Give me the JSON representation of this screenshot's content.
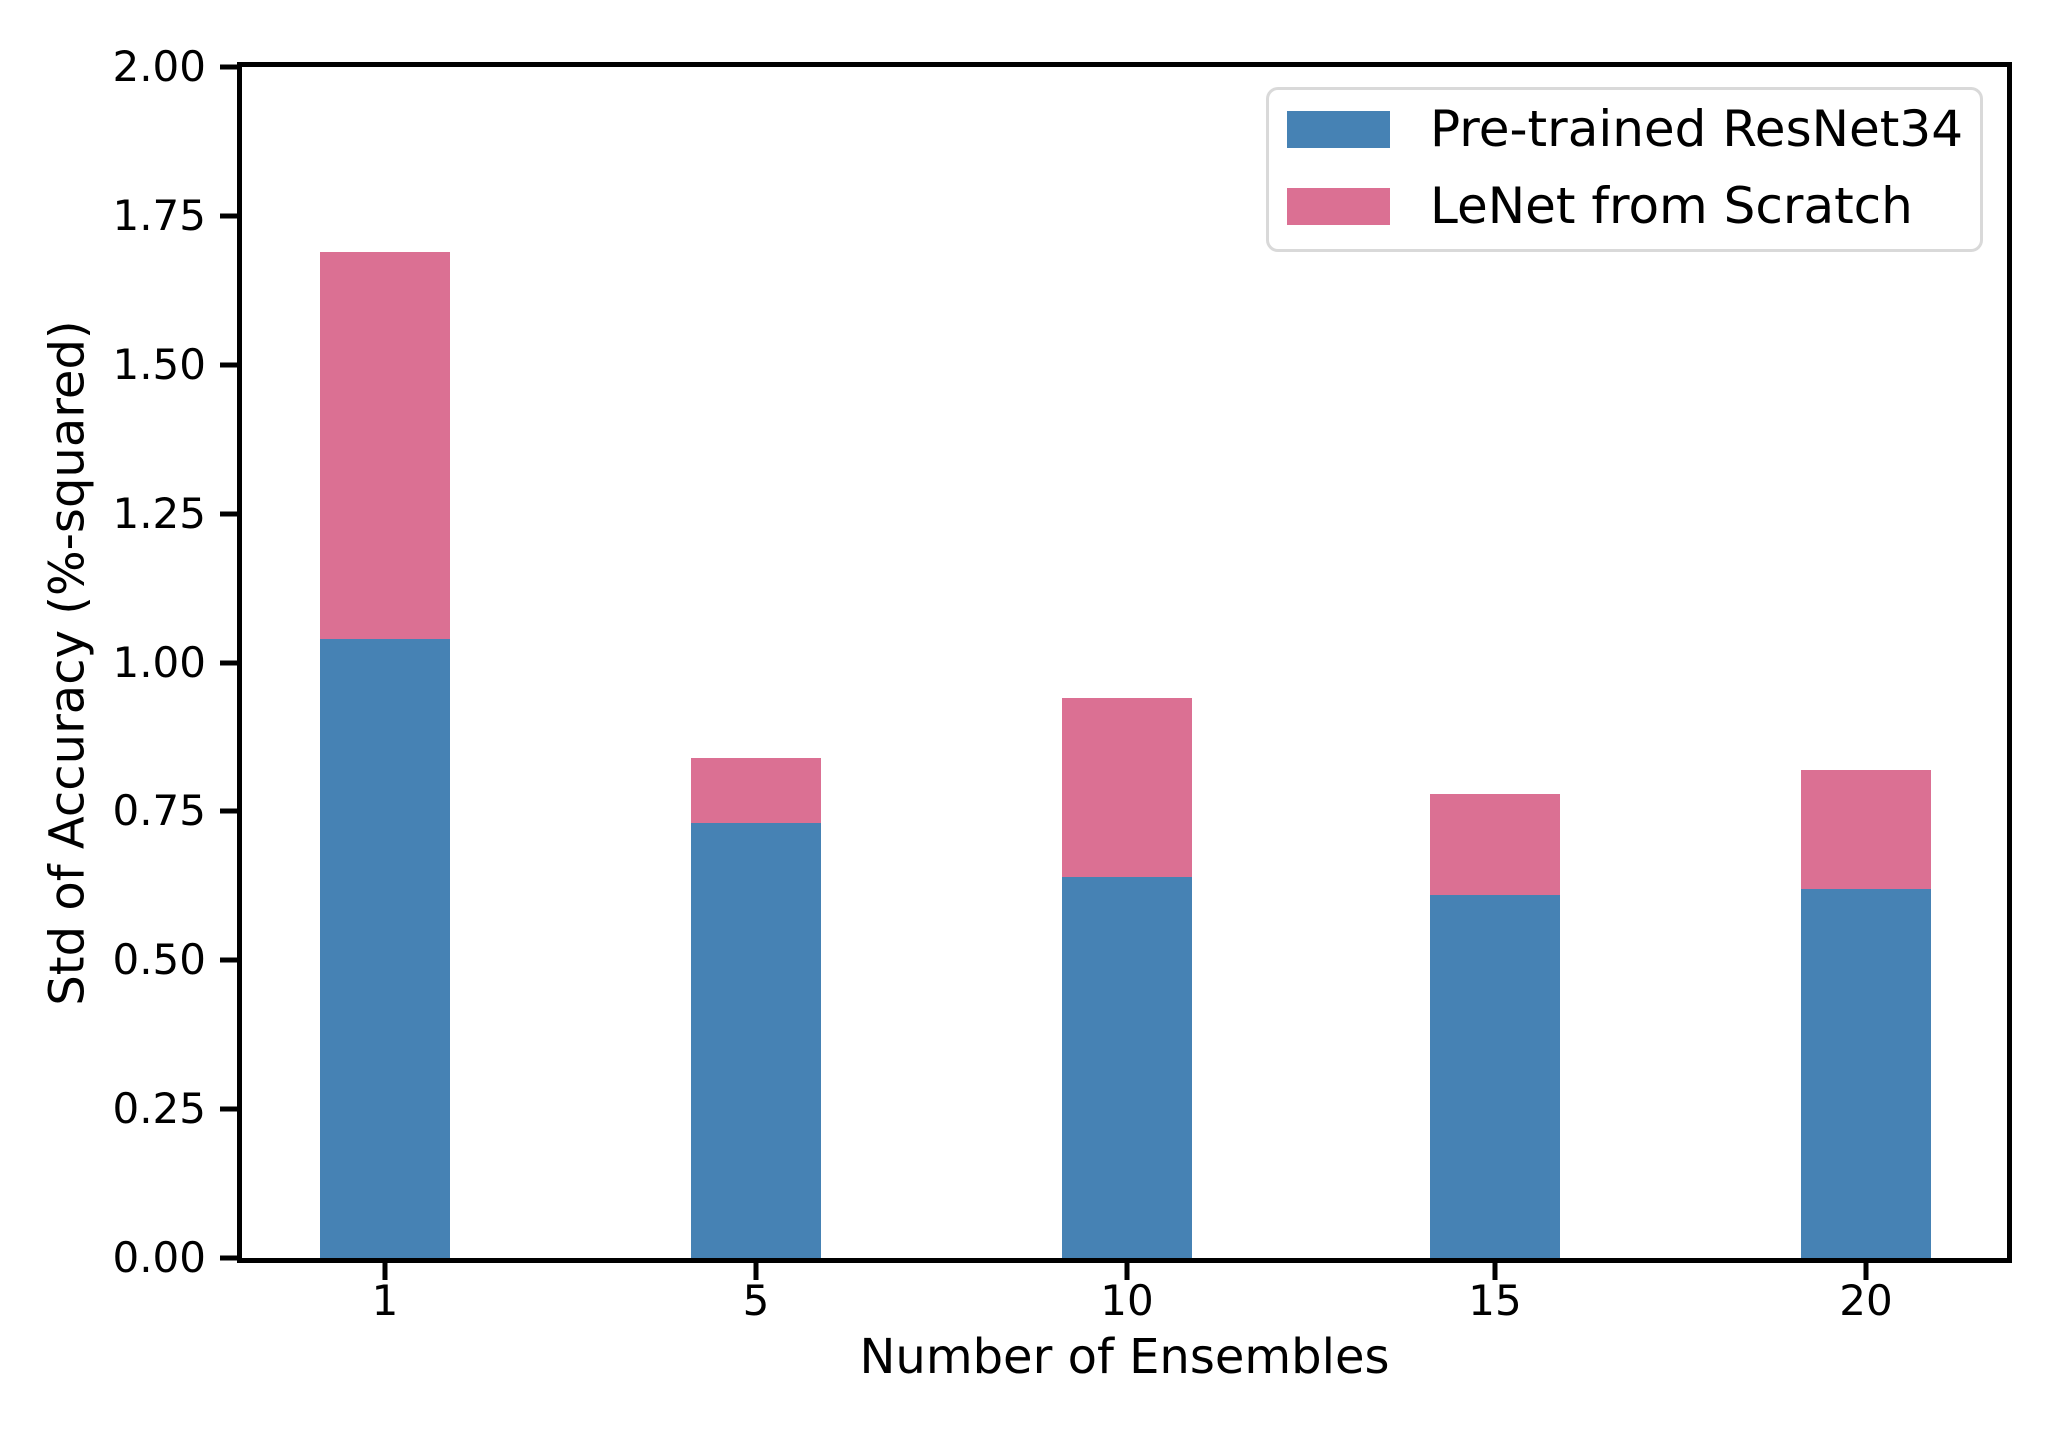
{
  "chart_data": {
    "type": "bar",
    "stacked": true,
    "xlabel": "Number of Ensembles",
    "ylabel": "Std of Accuracy (%-squared)",
    "categories": [
      "1",
      "5",
      "10",
      "15",
      "20"
    ],
    "series": [
      {
        "name": "Pre-trained ResNet34",
        "color": "#4682b4",
        "values": [
          1.04,
          0.73,
          0.64,
          0.61,
          0.62
        ]
      },
      {
        "name": "LeNet from Scratch",
        "color": "#db7093",
        "values": [
          0.65,
          0.11,
          0.3,
          0.17,
          0.2
        ]
      }
    ],
    "stack_totals": [
      1.69,
      0.84,
      0.94,
      0.78,
      0.82
    ],
    "ylim": [
      0,
      2
    ],
    "ytick_step": 0.25,
    "ytick_labels": [
      "0.00",
      "0.25",
      "0.50",
      "0.75",
      "1.00",
      "1.25",
      "1.50",
      "1.75",
      "2.00"
    ],
    "legend": {
      "position": "upper right",
      "entries": [
        "Pre-trained ResNet34",
        "LeNet from Scratch"
      ]
    },
    "grid": false,
    "axis_color": "#000000",
    "background_color": "#ffffff"
  }
}
